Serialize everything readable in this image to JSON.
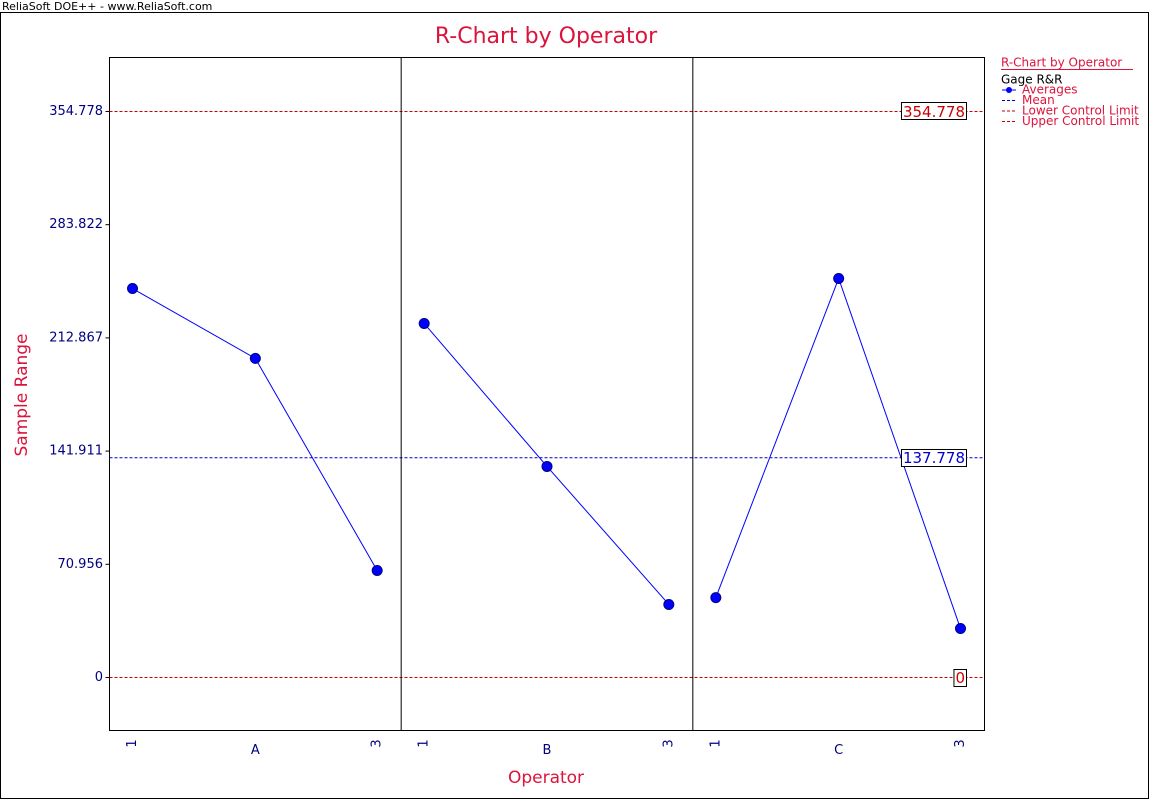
{
  "header": "ReliaSoft DOE++ - www.ReliaSoft.com",
  "chart_data": {
    "type": "line",
    "title": "R-Chart by Operator",
    "y_label": "Sample Range",
    "x_label": "Operator",
    "ylim": [
      -33.2,
      388.6
    ],
    "yticks": [
      0,
      70.956,
      141.911,
      212.867,
      283.822,
      354.778
    ],
    "legend_subtitle": "Gage R&R",
    "series": [
      {
        "name": "Averages",
        "color": "#0000ff"
      }
    ],
    "panels": [
      {
        "categories": [
          "1",
          "A",
          "3"
        ],
        "values": [
          243.8,
          200.0,
          67.1
        ]
      },
      {
        "categories": [
          "1",
          "B",
          "3"
        ],
        "values": [
          221.9,
          132.3,
          45.8
        ]
      },
      {
        "categories": [
          "1",
          "C",
          "3"
        ],
        "values": [
          50.1,
          250.1,
          30.7
        ]
      }
    ],
    "limits": [
      {
        "name": "Mean",
        "value": 137.778,
        "color": "#0000cc"
      },
      {
        "name": "Lower Control Limit",
        "value": 0,
        "color": "#cc0000"
      },
      {
        "name": "Upper Control Limit",
        "value": 354.778,
        "color": "#cc0000"
      }
    ]
  }
}
